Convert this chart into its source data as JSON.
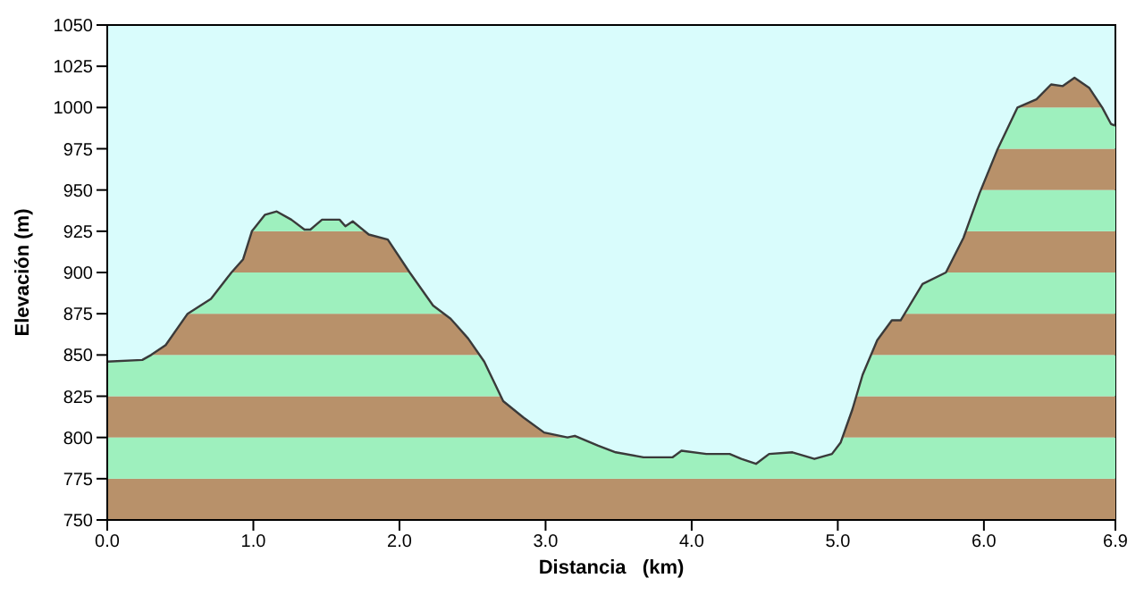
{
  "chart_data": {
    "type": "area",
    "xlabel": "Distancia   (km)",
    "ylabel": "Elevación (m)",
    "x": [
      0,
      0.24,
      0.3,
      0.4,
      0.55,
      0.71,
      0.85,
      0.93,
      0.99,
      1.08,
      1.16,
      1.26,
      1.35,
      1.39,
      1.47,
      1.59,
      1.63,
      1.68,
      1.79,
      1.92,
      2.07,
      2.23,
      2.35,
      2.47,
      2.58,
      2.71,
      2.85,
      2.99,
      3.15,
      3.2,
      3.36,
      3.48,
      3.67,
      3.87,
      3.93,
      4.1,
      4.26,
      4.34,
      4.44,
      4.53,
      4.69,
      4.84,
      4.96,
      5.02,
      5.1,
      5.17,
      5.27,
      5.37,
      5.43,
      5.58,
      5.74,
      5.86,
      5.97,
      6.09,
      6.23,
      6.36,
      6.46,
      6.54,
      6.62,
      6.72,
      6.81,
      6.87,
      6.9
    ],
    "series": [
      {
        "color": "#b8916a",
        "values": [
          846,
          847,
          850,
          856,
          875,
          884,
          900,
          908,
          925,
          935,
          937,
          932,
          926,
          926,
          932,
          932,
          928,
          931,
          923,
          920,
          900,
          880,
          872,
          860,
          846,
          822,
          812,
          803,
          800,
          801,
          795,
          791,
          788,
          788,
          792,
          790,
          790,
          787,
          784,
          790,
          791,
          787,
          790,
          797,
          817,
          838,
          859,
          871,
          871,
          893,
          900,
          921,
          948,
          974,
          1000,
          1005,
          1014,
          1013,
          1018,
          1012,
          1000,
          990,
          989
        ]
      }
    ],
    "xlim": [
      0,
      6.9
    ],
    "xticks": [
      {
        "value": 0,
        "label": "0.0"
      },
      {
        "value": 1,
        "label": "1.0"
      },
      {
        "value": 2,
        "label": "2.0"
      },
      {
        "value": 3,
        "label": "3.0"
      },
      {
        "value": 4,
        "label": "4.0"
      },
      {
        "value": 5,
        "label": "5.0"
      },
      {
        "value": 6,
        "label": "6.0"
      },
      6.9
    ],
    "ylim": [
      750,
      1050
    ],
    "yticks": [
      750,
      775,
      800,
      825,
      850,
      875,
      900,
      925,
      950,
      975,
      1000,
      1025,
      1050
    ]
  }
}
